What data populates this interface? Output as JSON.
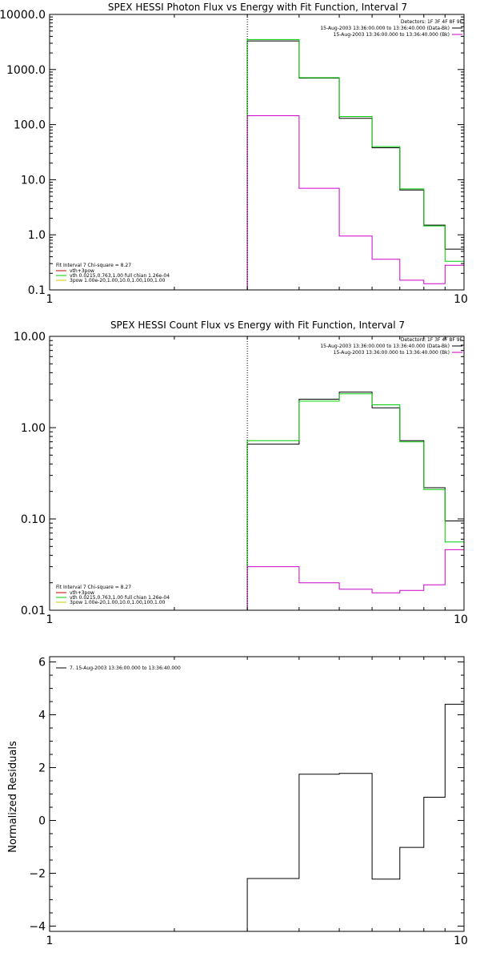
{
  "chart_data": [
    {
      "type": "line",
      "title": "SPEX HESSI Photon Flux vs Energy with Fit Function, Interval 7",
      "ylabel": "",
      "xlabel": "",
      "xscale": "log",
      "yscale": "log",
      "xlim": [
        1,
        10
      ],
      "ylim": [
        0.1,
        10000
      ],
      "xticks": [
        {
          "value": 1,
          "label": "1"
        },
        {
          "value": 10,
          "label": "10"
        }
      ],
      "yticks": [
        {
          "value": 0.1,
          "label": "0.1"
        },
        {
          "value": 1,
          "label": "1.0"
        },
        {
          "value": 10,
          "label": "10.0"
        },
        {
          "value": 100,
          "label": "100.0"
        },
        {
          "value": 1000,
          "label": "1000.0"
        },
        {
          "value": 10000,
          "label": "10000.0"
        }
      ],
      "detectors_text": "Detectors: 1F 3F 4F 8F 9F",
      "legend_top_right": [
        {
          "text": "15-Aug-2003 13:36:00.000 to 13:36:40.000 (Data-Bk)",
          "color": "#000000"
        },
        {
          "text": "15-Aug-2003 13:36:00.000 to 13:36:40.000 (Bk)",
          "color": "#cc00cc"
        }
      ],
      "fit_text": "Fit Interval  7   Chi-square = 8.27",
      "legend_bottom_left": [
        {
          "text": "vth+3pow",
          "color": "#cc0000"
        },
        {
          "text": "vth 0.0215,0.763,1.00  full chian 1.26e-04",
          "color": "#00cc00"
        },
        {
          "text": "3pow 1.00e-20,1.00,10.0,1.00,100,1.00",
          "color": "#cccc00"
        }
      ],
      "vline_x": 3,
      "bin_edges": [
        3,
        4,
        5,
        6,
        7,
        8,
        9,
        10
      ],
      "series": [
        {
          "color": "#000000",
          "values": [
            3300,
            700,
            130,
            38,
            6.5,
            1.5,
            0.55
          ]
        },
        {
          "color": "#00cc00",
          "values": [
            3500,
            710,
            140,
            40,
            6.8,
            1.45,
            0.33
          ]
        },
        {
          "color": "#cc00cc",
          "values": [
            145,
            7,
            0.95,
            0.36,
            0.15,
            0.13,
            0.28
          ]
        }
      ]
    },
    {
      "type": "line",
      "title": "SPEX HESSI Count Flux vs Energy with Fit Function, Interval 7",
      "ylabel": "",
      "xlabel": "",
      "xscale": "log",
      "yscale": "log",
      "xlim": [
        1,
        10
      ],
      "ylim": [
        0.01,
        10
      ],
      "xticks": [
        {
          "value": 1,
          "label": "1"
        },
        {
          "value": 10,
          "label": "10"
        }
      ],
      "yticks": [
        {
          "value": 0.01,
          "label": "0.01"
        },
        {
          "value": 0.1,
          "label": "0.10"
        },
        {
          "value": 1,
          "label": "1.00"
        },
        {
          "value": 10,
          "label": "10.00"
        }
      ],
      "detectors_text": "Detectors: 1F 3F 4F 8F 9F",
      "legend_top_right": [
        {
          "text": "15-Aug-2003 13:36:00.000 to 13:36:40.000 (Data-Bk)",
          "color": "#000000"
        },
        {
          "text": "15-Aug-2003 13:36:00.000 to 13:36:40.000 (Bk)",
          "color": "#cc00cc"
        }
      ],
      "fit_text": "Fit Interval  7   Chi-square = 8.27",
      "legend_bottom_left": [
        {
          "text": "vth+3pow",
          "color": "#cc0000"
        },
        {
          "text": "vth 0.0215,0.763,1.00  full chian 1.26e-04",
          "color": "#00cc00"
        },
        {
          "text": "3pow 1.00e-20,1.00,10.0,1.00,100,1.00",
          "color": "#cccc00"
        }
      ],
      "vline_x": 3,
      "bin_edges": [
        3,
        4,
        5,
        6,
        7,
        8,
        9,
        10
      ],
      "series": [
        {
          "color": "#000000",
          "values": [
            0.66,
            2.05,
            2.45,
            1.65,
            0.72,
            0.22,
            0.095
          ]
        },
        {
          "color": "#00cc00",
          "values": [
            0.72,
            1.95,
            2.35,
            1.78,
            0.7,
            0.21,
            0.056
          ]
        },
        {
          "color": "#cc00cc",
          "values": [
            0.03,
            0.02,
            0.017,
            0.0155,
            0.0165,
            0.019,
            0.046
          ]
        }
      ]
    },
    {
      "type": "line",
      "title": "",
      "ylabel": "Normalized Residuals",
      "xlabel": "",
      "xscale": "log",
      "yscale": "linear",
      "xlim": [
        1,
        10
      ],
      "ylim": [
        -4.2,
        6.2
      ],
      "xticks": [
        {
          "value": 1,
          "label": "1"
        },
        {
          "value": 10,
          "label": "10"
        }
      ],
      "yticks": [
        {
          "value": 6,
          "label": "6"
        },
        {
          "value": 4,
          "label": "4"
        },
        {
          "value": 2,
          "label": "2"
        },
        {
          "value": 0,
          "label": "0"
        },
        {
          "value": -2,
          "label": "−2"
        },
        {
          "value": -4,
          "label": "−4"
        }
      ],
      "legend_top_left": [
        {
          "text": "7. 15-Aug-2003 13:36:00.000 to 13:36:40.000",
          "color": "#000000"
        }
      ],
      "bin_edges": [
        3,
        4,
        5,
        6,
        7,
        8,
        9,
        10
      ],
      "series": [
        {
          "color": "#000000",
          "values": [
            -2.2,
            1.75,
            1.78,
            -2.22,
            -1.02,
            0.88,
            4.4
          ]
        }
      ]
    }
  ]
}
